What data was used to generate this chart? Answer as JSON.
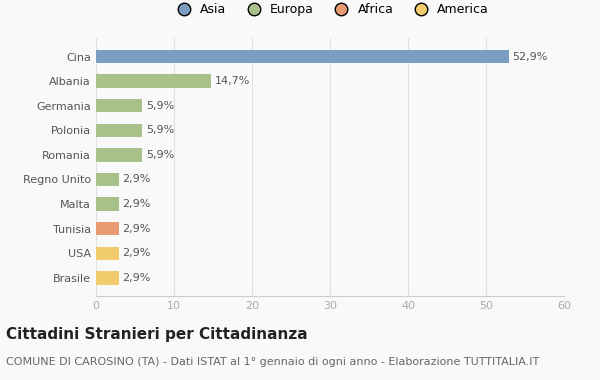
{
  "categories": [
    "Brasile",
    "USA",
    "Tunisia",
    "Malta",
    "Regno Unito",
    "Romania",
    "Polonia",
    "Germania",
    "Albania",
    "Cina"
  ],
  "values": [
    2.9,
    2.9,
    2.9,
    2.9,
    2.9,
    5.9,
    5.9,
    5.9,
    14.7,
    52.9
  ],
  "labels": [
    "2,9%",
    "2,9%",
    "2,9%",
    "2,9%",
    "2,9%",
    "5,9%",
    "5,9%",
    "5,9%",
    "14,7%",
    "52,9%"
  ],
  "colors": [
    "#F2CB6A",
    "#F2CB6A",
    "#E89A72",
    "#A8C08A",
    "#A8C08A",
    "#A8C08A",
    "#A8C08A",
    "#A8C08A",
    "#A8C08A",
    "#7B9EC0"
  ],
  "legend_labels": [
    "Asia",
    "Europa",
    "Africa",
    "America"
  ],
  "legend_colors": [
    "#7B9EC0",
    "#A8C08A",
    "#E89A72",
    "#F2CB6A"
  ],
  "title": "Cittadini Stranieri per Cittadinanza",
  "subtitle": "COMUNE DI CAROSINO (TA) - Dati ISTAT al 1° gennaio di ogni anno - Elaborazione TUTTITALIA.IT",
  "xlim": [
    0,
    60
  ],
  "xticks": [
    0,
    10,
    20,
    30,
    40,
    50,
    60
  ],
  "background_color": "#f9f9f9",
  "bar_height": 0.55,
  "title_fontsize": 11,
  "subtitle_fontsize": 8,
  "label_fontsize": 8,
  "tick_fontsize": 8,
  "legend_fontsize": 9,
  "label_color": "#555555",
  "tick_color": "#aaaaaa",
  "ytick_color": "#555555",
  "grid_color": "#e0e0e0"
}
